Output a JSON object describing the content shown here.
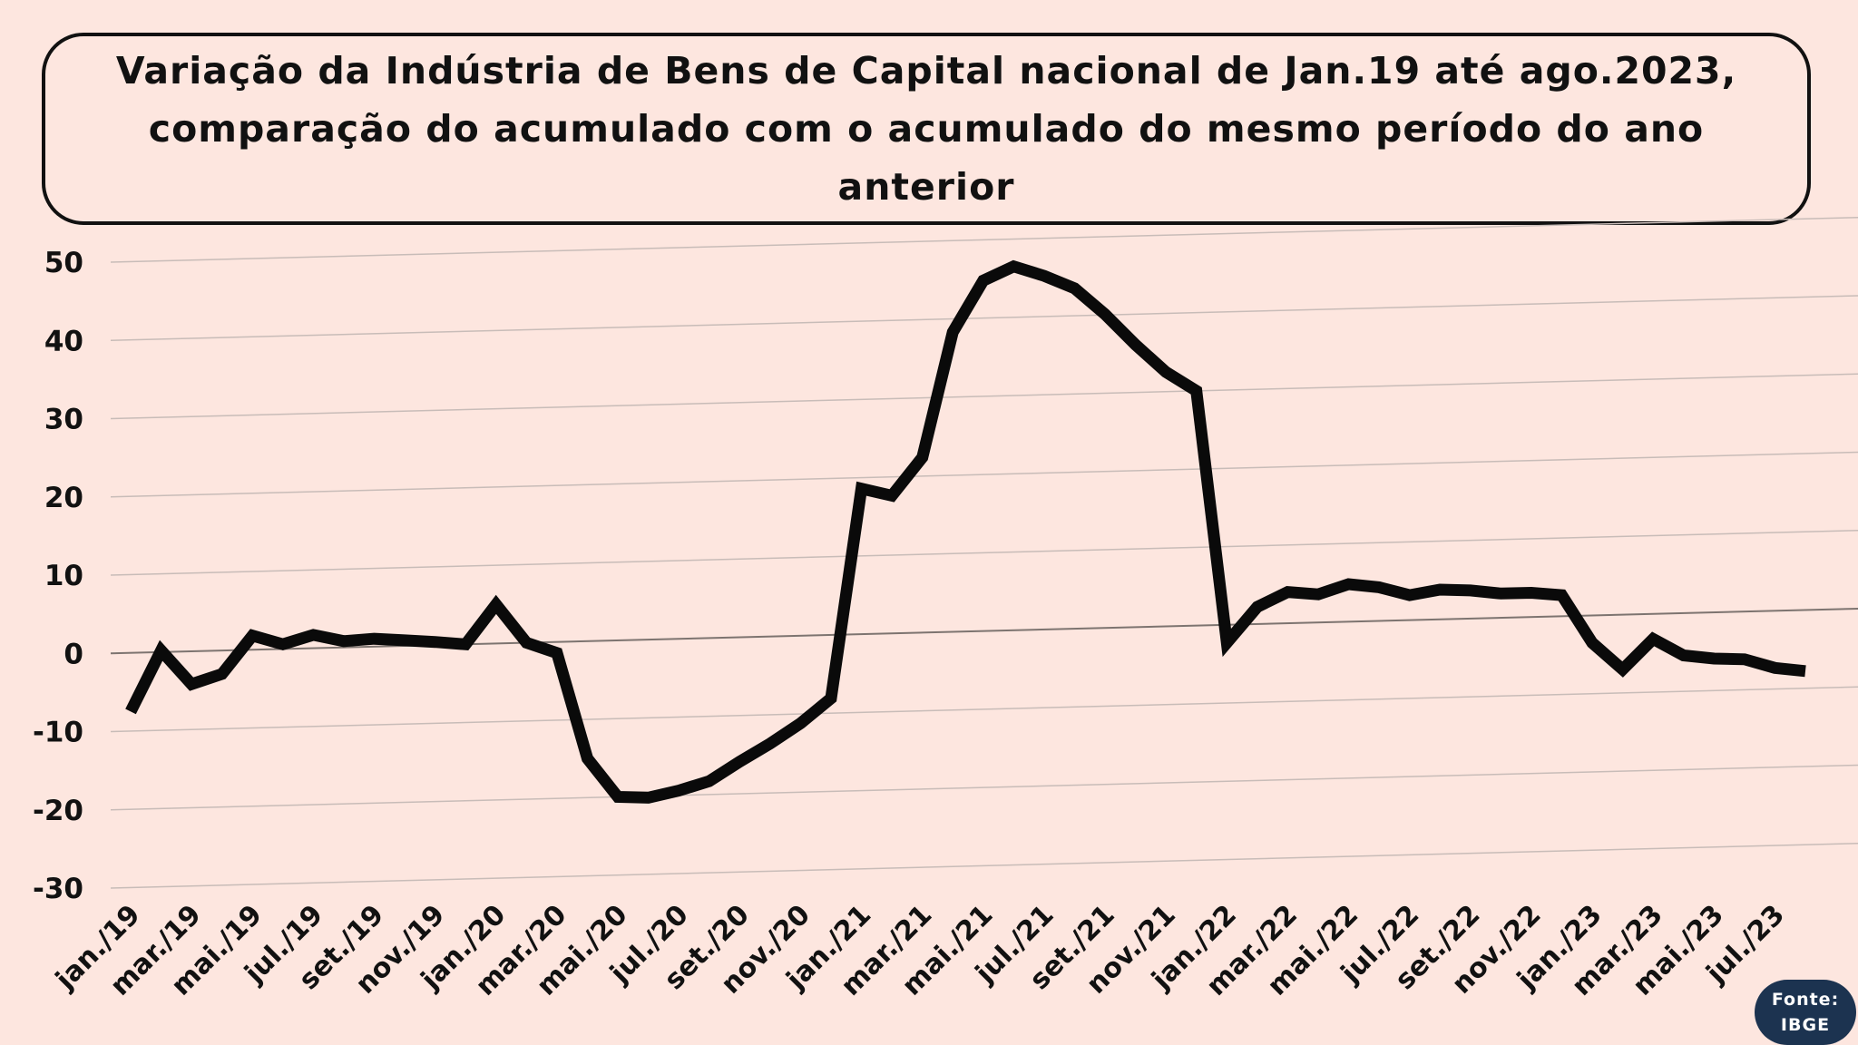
{
  "title": "Variação da Indústria de Bens de Capital nacional de Jan.19 até ago.2023, comparação do acumulado com o acumulado do mesmo período do ano anterior",
  "source": {
    "label": "Fonte:",
    "value": "IBGE"
  },
  "colors": {
    "background": "#fde6df",
    "line": "#0a0a0a",
    "grid": "#c8bcb8",
    "badge": "#1c3350"
  },
  "chart_data": {
    "type": "line",
    "title": "Variação da Indústria de Bens de Capital nacional de Jan.19 até ago.2023, comparação do acumulado com o acumulado do mesmo período do ano anterior",
    "ylim": [
      -30,
      50
    ],
    "yticks": [
      50,
      40,
      30,
      20,
      10,
      0,
      -10,
      -20,
      -30
    ],
    "x_tick_labels": [
      "jan./19",
      "mar./19",
      "mai./19",
      "jul./19",
      "set./19",
      "nov./19",
      "jan./20",
      "mar./20",
      "mai./20",
      "jul./20",
      "set./20",
      "nov./20",
      "jan./21",
      "mar./21",
      "mai./21",
      "jul./21",
      "set./21",
      "nov./21",
      "jan./22",
      "mar./22",
      "mai./22",
      "jul./22",
      "set./22",
      "nov./22",
      "jan./23",
      "mar./23",
      "mai./23",
      "jul./23"
    ],
    "grid": true,
    "legend": "none",
    "series": [
      {
        "values": [
          -7.5,
          0.2,
          -4.2,
          -3.0,
          1.8,
          0.6,
          1.7,
          0.8,
          1.0,
          0.7,
          0.4,
          0.0,
          5.0,
          0.0,
          -1.4,
          -15.0,
          -20.0,
          -20.2,
          -19.4,
          -18.3,
          -15.9,
          -13.7,
          -11.2,
          -8.1,
          18.6,
          17.6,
          22.4,
          38.3,
          44.8,
          46.5,
          45.2,
          43.5,
          40.1,
          36.1,
          32.5,
          30.0,
          -2.3,
          2.2,
          4.0,
          3.6,
          4.8,
          4.3,
          3.2,
          3.8,
          3.6,
          3.1,
          3.1,
          2.7,
          -3.5,
          -7.0,
          -3.2,
          -5.4,
          -5.9,
          -6.1,
          -7.3,
          -7.8
        ]
      }
    ]
  }
}
